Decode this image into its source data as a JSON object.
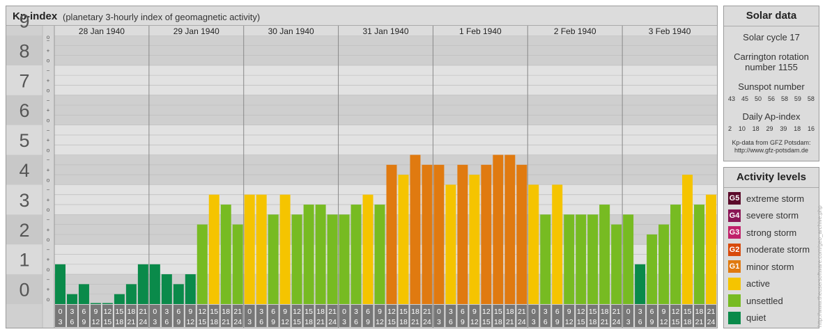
{
  "header": {
    "title": "Kp-index",
    "subtitle": "(planetary 3-hourly index of geomagnetic activity)"
  },
  "chart_data": {
    "type": "bar",
    "title": "Kp-index",
    "subtitle": "(planetary 3-hourly index of geomagnetic activity)",
    "ylim": [
      0,
      9
    ],
    "y_ticks": [
      "0",
      "1",
      "2",
      "3",
      "4",
      "5",
      "6",
      "7",
      "8",
      "9"
    ],
    "minor_ticks": [
      "o",
      "+",
      "−"
    ],
    "days": [
      "28 Jan 1940",
      "29 Jan 1940",
      "30 Jan 1940",
      "31 Jan 1940",
      "1 Feb 1940",
      "2 Feb 1940",
      "3 Feb 1940"
    ],
    "hour_starts": [
      "0",
      "3",
      "6",
      "9",
      "12",
      "15",
      "18",
      "21"
    ],
    "hour_ends": [
      "3",
      "6",
      "9",
      "12",
      "15",
      "18",
      "21",
      "24"
    ],
    "values": [
      [
        1.333,
        0.333,
        0.667,
        0.0,
        0.0,
        0.333,
        0.667,
        1.333
      ],
      [
        1.333,
        1.0,
        0.667,
        1.0,
        2.667,
        3.667,
        3.333,
        2.667
      ],
      [
        3.667,
        3.667,
        3.0,
        3.667,
        3.0,
        3.333,
        3.333,
        3.0
      ],
      [
        3.0,
        3.333,
        3.667,
        3.333,
        4.667,
        4.333,
        5.0,
        4.667
      ],
      [
        4.667,
        4.0,
        4.667,
        4.333,
        4.667,
        5.0,
        5.0,
        4.667
      ],
      [
        4.0,
        3.0,
        4.0,
        3.0,
        3.0,
        3.0,
        3.333,
        2.667
      ],
      [
        3.0,
        1.333,
        2.333,
        2.667,
        3.333,
        4.333,
        3.333,
        3.667
      ]
    ],
    "colors": {
      "quiet": "#0a8a4a",
      "unsettled": "#77bb22",
      "active": "#f5c400",
      "minor": "#e07a10",
      "moderate": "#d84a0c",
      "strong": "#c0206a",
      "severe": "#8a1555",
      "extreme": "#5a0a2a"
    },
    "grid": true
  },
  "solar": {
    "title": "Solar data",
    "cycle": "Solar cycle 17",
    "carrington_line1": "Carrington rotation",
    "carrington_line2": "number 1155",
    "sunspot_label": "Sunspot number",
    "sunspots": [
      "43",
      "45",
      "50",
      "56",
      "58",
      "59",
      "58"
    ],
    "ap_label": "Daily Ap-index",
    "ap": [
      "2",
      "10",
      "18",
      "29",
      "39",
      "18",
      "16"
    ],
    "source_line1": "Kp-data from GFZ Potsdam:",
    "source_line2": "http://www.gfz-potsdam.de"
  },
  "legend": {
    "title": "Activity levels",
    "items": [
      {
        "code": "G5",
        "label": "extreme storm",
        "color": "#5a0a2a"
      },
      {
        "code": "G4",
        "label": "severe storm",
        "color": "#8a1555"
      },
      {
        "code": "G3",
        "label": "strong storm",
        "color": "#c0206a"
      },
      {
        "code": "G2",
        "label": "moderate storm",
        "color": "#d84a0c"
      },
      {
        "code": "G1",
        "label": "minor storm",
        "color": "#e07a10"
      },
      {
        "code": "",
        "label": "active",
        "color": "#f5c400"
      },
      {
        "code": "",
        "label": "unsettled",
        "color": "#77bb22"
      },
      {
        "code": "",
        "label": "quiet",
        "color": "#0a8a4a"
      }
    ]
  },
  "watermark": "http://www.theusersoftware.com/geo_archive.php"
}
